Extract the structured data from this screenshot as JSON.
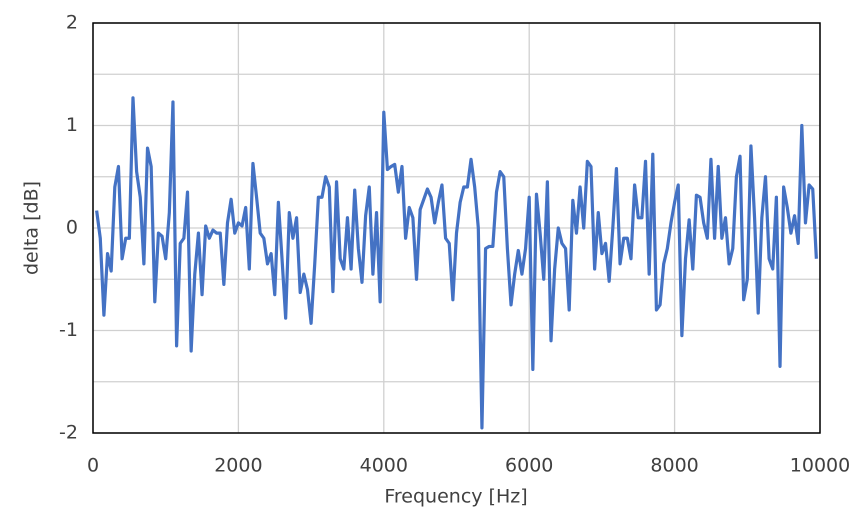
{
  "chart_data": {
    "type": "line",
    "xlabel": "Frequency [Hz]",
    "ylabel": "delta [dB]",
    "x": [
      50,
      100,
      150,
      200,
      250,
      300,
      350,
      400,
      450,
      500,
      550,
      600,
      650,
      700,
      750,
      800,
      850,
      900,
      950,
      1000,
      1050,
      1100,
      1150,
      1200,
      1250,
      1300,
      1350,
      1400,
      1450,
      1500,
      1550,
      1600,
      1650,
      1700,
      1750,
      1800,
      1850,
      1900,
      1950,
      2000,
      2050,
      2100,
      2150,
      2200,
      2250,
      2300,
      2350,
      2400,
      2450,
      2500,
      2550,
      2600,
      2650,
      2700,
      2750,
      2800,
      2850,
      2900,
      2950,
      3000,
      3050,
      3100,
      3150,
      3200,
      3250,
      3300,
      3350,
      3400,
      3450,
      3500,
      3550,
      3600,
      3650,
      3700,
      3750,
      3800,
      3850,
      3900,
      3950,
      4000,
      4050,
      4100,
      4150,
      4200,
      4250,
      4300,
      4350,
      4400,
      4450,
      4500,
      4550,
      4600,
      4650,
      4700,
      4750,
      4800,
      4850,
      4900,
      4950,
      5000,
      5050,
      5100,
      5150,
      5200,
      5250,
      5300,
      5350,
      5400,
      5450,
      5500,
      5550,
      5600,
      5650,
      5700,
      5750,
      5800,
      5850,
      5900,
      5950,
      6000,
      6050,
      6100,
      6150,
      6200,
      6250,
      6300,
      6350,
      6400,
      6450,
      6500,
      6550,
      6600,
      6650,
      6700,
      6750,
      6800,
      6850,
      6900,
      6950,
      7000,
      7050,
      7100,
      7150,
      7200,
      7250,
      7300,
      7350,
      7400,
      7450,
      7500,
      7550,
      7600,
      7650,
      7700,
      7750,
      7800,
      7850,
      7900,
      7950,
      8000,
      8050,
      8100,
      8150,
      8200,
      8250,
      8300,
      8350,
      8400,
      8450,
      8500,
      8550,
      8600,
      8650,
      8700,
      8750,
      8800,
      8850,
      8900,
      8950,
      9000,
      9050,
      9100,
      9150,
      9200,
      9250,
      9300,
      9350,
      9400,
      9450,
      9500,
      9550,
      9600,
      9650,
      9700,
      9750,
      9800,
      9850,
      9900,
      9950
    ],
    "series": [
      {
        "name": "delta",
        "color": "#4472c4",
        "values": [
          0.17,
          -0.1,
          -0.85,
          -0.25,
          -0.42,
          0.4,
          0.6,
          -0.3,
          -0.1,
          -0.1,
          1.27,
          0.55,
          0.3,
          -0.35,
          0.78,
          0.6,
          -0.72,
          -0.05,
          -0.08,
          -0.3,
          0.15,
          1.23,
          -1.15,
          -0.15,
          -0.1,
          0.35,
          -1.2,
          -0.45,
          -0.05,
          -0.65,
          0.02,
          -0.1,
          -0.02,
          -0.05,
          -0.05,
          -0.55,
          0.05,
          0.28,
          -0.05,
          0.05,
          0.02,
          0.2,
          -0.4,
          0.63,
          0.3,
          -0.05,
          -0.1,
          -0.35,
          -0.25,
          -0.65,
          0.25,
          -0.3,
          -0.88,
          0.15,
          -0.1,
          0.1,
          -0.63,
          -0.45,
          -0.6,
          -0.93,
          -0.35,
          0.3,
          0.3,
          0.5,
          0.4,
          -0.62,
          0.45,
          -0.3,
          -0.4,
          0.1,
          -0.4,
          0.37,
          -0.2,
          -0.53,
          0.12,
          0.4,
          -0.45,
          0.15,
          -0.72,
          1.13,
          0.57,
          0.6,
          0.62,
          0.35,
          0.6,
          -0.1,
          0.2,
          0.1,
          -0.5,
          0.18,
          0.28,
          0.38,
          0.3,
          0.05,
          0.25,
          0.42,
          -0.1,
          -0.15,
          -0.7,
          -0.05,
          0.25,
          0.4,
          0.4,
          0.67,
          0.4,
          0.0,
          -1.95,
          -0.2,
          -0.18,
          -0.18,
          0.35,
          0.55,
          0.5,
          -0.2,
          -0.75,
          -0.45,
          -0.22,
          -0.45,
          -0.2,
          0.3,
          -1.38,
          0.33,
          -0.05,
          -0.5,
          0.45,
          -1.1,
          -0.4,
          0.0,
          -0.15,
          -0.2,
          -0.8,
          0.27,
          -0.05,
          0.4,
          0.0,
          0.65,
          0.6,
          -0.4,
          0.15,
          -0.25,
          -0.15,
          -0.52,
          0.0,
          0.58,
          -0.35,
          -0.1,
          -0.1,
          -0.3,
          0.42,
          0.1,
          0.1,
          0.65,
          -0.45,
          0.72,
          -0.8,
          -0.75,
          -0.35,
          -0.2,
          0.05,
          0.25,
          0.42,
          -1.05,
          -0.3,
          0.08,
          -0.4,
          0.32,
          0.3,
          0.05,
          -0.1,
          0.67,
          -0.1,
          0.6,
          -0.1,
          0.1,
          -0.35,
          -0.2,
          0.5,
          0.7,
          -0.7,
          -0.5,
          0.8,
          0.1,
          -0.83,
          0.1,
          0.5,
          -0.3,
          -0.4,
          0.3,
          -1.35,
          0.4,
          0.2,
          -0.05,
          0.12,
          -0.15,
          1.0,
          0.05,
          0.42,
          0.38,
          -0.3
        ]
      }
    ],
    "xlim": [
      0,
      10000
    ],
    "xticks": [
      0,
      2000,
      4000,
      6000,
      8000,
      10000
    ],
    "ylim": [
      -2,
      2
    ],
    "yticks": [
      -2,
      -1,
      0,
      1,
      2
    ],
    "minor_yticks": [
      -1.5,
      -0.5,
      0.5,
      1.5
    ],
    "grid": true
  }
}
